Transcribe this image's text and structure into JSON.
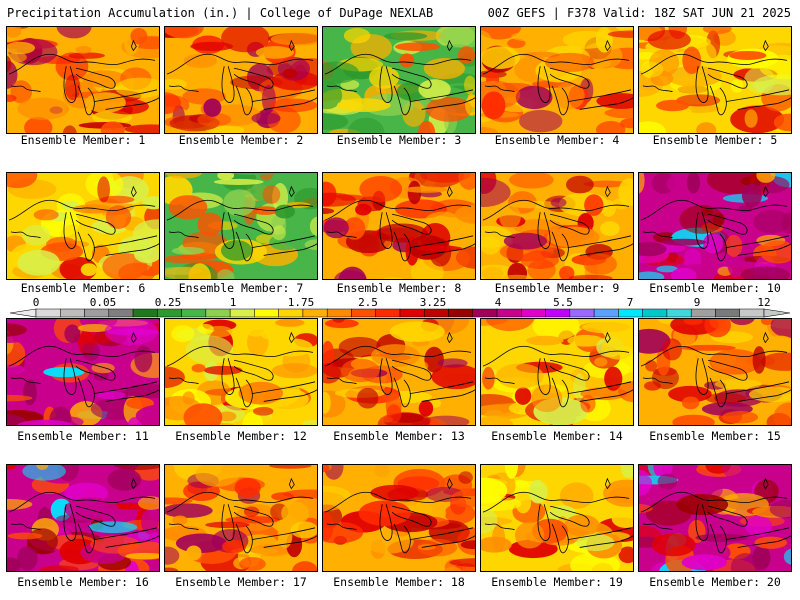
{
  "header": {
    "left": "Precipitation Accumulation (in.) | College of DuPage NEXLAB",
    "right": "00Z GEFS | F378 Valid: 18Z SAT JUN 21 2025"
  },
  "caption_prefix": "Ensemble Member: ",
  "members": [
    {
      "label": "Ensemble Member: 1",
      "theme": "red"
    },
    {
      "label": "Ensemble Member: 2",
      "theme": "red"
    },
    {
      "label": "Ensemble Member: 3",
      "theme": "green"
    },
    {
      "label": "Ensemble Member: 4",
      "theme": "red"
    },
    {
      "label": "Ensemble Member: 5",
      "theme": "orange"
    },
    {
      "label": "Ensemble Member: 6",
      "theme": "orange"
    },
    {
      "label": "Ensemble Member: 7",
      "theme": "green"
    },
    {
      "label": "Ensemble Member: 8",
      "theme": "red"
    },
    {
      "label": "Ensemble Member: 9",
      "theme": "red"
    },
    {
      "label": "Ensemble Member: 10",
      "theme": "purple"
    },
    {
      "label": "Ensemble Member: 11",
      "theme": "purple"
    },
    {
      "label": "Ensemble Member: 12",
      "theme": "orange"
    },
    {
      "label": "Ensemble Member: 13",
      "theme": "red"
    },
    {
      "label": "Ensemble Member: 14",
      "theme": "orange"
    },
    {
      "label": "Ensemble Member: 15",
      "theme": "red"
    },
    {
      "label": "Ensemble Member: 16",
      "theme": "purple"
    },
    {
      "label": "Ensemble Member: 17",
      "theme": "red"
    },
    {
      "label": "Ensemble Member: 18",
      "theme": "red"
    },
    {
      "label": "Ensemble Member: 19",
      "theme": "orange"
    },
    {
      "label": "Ensemble Member: 20",
      "theme": "purple"
    }
  ],
  "colorbar": {
    "tick_labels": [
      "0",
      "0.05",
      "0.25",
      "1",
      "1.75",
      "2.5",
      "3.25",
      "4",
      "5.5",
      "7",
      "9",
      "12"
    ],
    "colors": [
      "#d9d9d9",
      "#bdbdbd",
      "#9e9e9e",
      "#7f7f7f",
      "#1f7a1f",
      "#2e9a2e",
      "#47b547",
      "#8fd14f",
      "#d8f04a",
      "#ffff00",
      "#ffd700",
      "#ffb000",
      "#ff8c00",
      "#ff5000",
      "#ff2a00",
      "#e00000",
      "#c00000",
      "#9a0000",
      "#a0005a",
      "#c8008c",
      "#e000c8",
      "#c000ff",
      "#9a6aff",
      "#5fa0ff",
      "#00e6ff",
      "#00c8c8",
      "#40d8d8",
      "#a0a0a0",
      "#7a7a7a",
      "#c8c8c8"
    ]
  },
  "theme_colors": {
    "red": [
      "#ffb000",
      "#ff8c00",
      "#ff5000",
      "#e00000",
      "#c00000",
      "#ff2a00",
      "#ffd700",
      "#a0005a"
    ],
    "orange": [
      "#ffd700",
      "#ffb000",
      "#ffff00",
      "#ff8c00",
      "#ff5000",
      "#d8f04a",
      "#e00000"
    ],
    "green": [
      "#47b547",
      "#8fd14f",
      "#2e9a2e",
      "#d8f04a",
      "#ffd700",
      "#ffb000",
      "#ff5000"
    ],
    "purple": [
      "#c8008c",
      "#e000c8",
      "#a0005a",
      "#e00000",
      "#ff5000",
      "#ffb000",
      "#9a0000",
      "#00e6ff"
    ]
  }
}
